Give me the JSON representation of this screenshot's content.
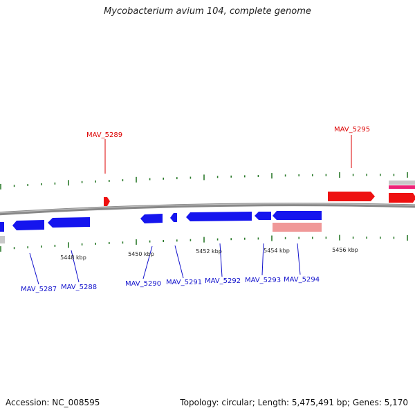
{
  "title": "Mycobacterium avium 104, complete genome",
  "footer": {
    "accession": "Accession: NC_008595",
    "stats": "Topology: circular; Length: 5,475,491 bp; Genes: 5,170"
  },
  "colors": {
    "forward_gene": "#ee1111",
    "reverse_gene": "#1515ee",
    "forward_label": "#dd0000",
    "reverse_label": "#1010cc",
    "backbone": "#888888",
    "tick": "#2a7a2a",
    "rrna": "#f09898",
    "trna": "#ee2277",
    "misc": "#c8c8c8"
  },
  "ticks": [
    "5448 kbp",
    "5450 kbp",
    "5452 kbp",
    "5454 kbp",
    "5456 kbp"
  ],
  "forward_labels": [
    "MAV_5289",
    "MAV_5295"
  ],
  "reverse_labels": [
    "MAV_5287",
    "MAV_5288",
    "MAV_5290",
    "MAV_5291",
    "MAV_5292",
    "MAV_5293",
    "MAV_5294"
  ]
}
